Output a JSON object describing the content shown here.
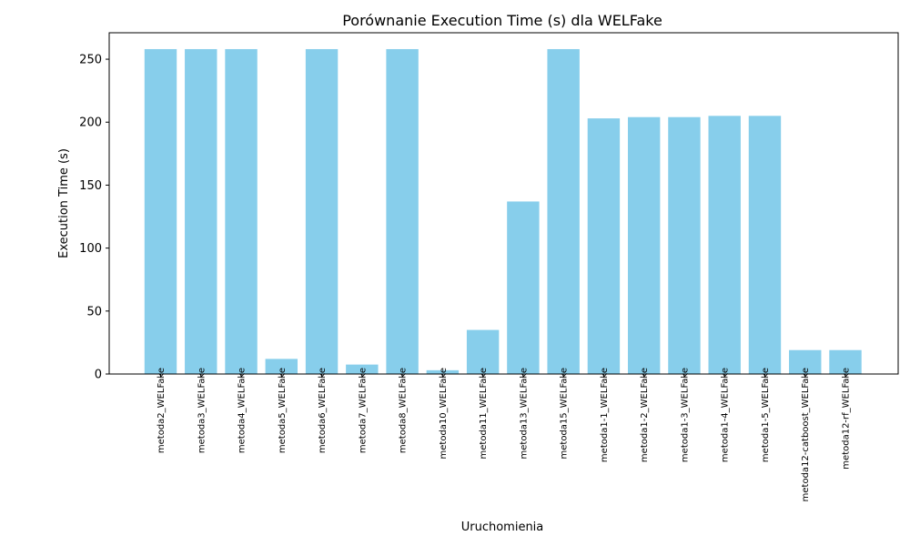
{
  "chart_data": {
    "type": "bar",
    "title": "Porównanie Execution Time (s) dla WELFake",
    "xlabel": "Uruchomienia",
    "ylabel": "Execution Time (s)",
    "ylim": [
      0,
      271
    ],
    "yticks": [
      0,
      50,
      100,
      150,
      200,
      250
    ],
    "bar_color": "#87ceeb",
    "categories": [
      "metoda2_WELFake",
      "metoda3_WELFake",
      "metoda4_WELFake",
      "metoda5_WELFake",
      "metoda6_WELFake",
      "metoda7_WELFake",
      "metoda8_WELFake",
      "metoda10_WELFake",
      "metoda11_WELFake",
      "metoda13_WELFake",
      "metoda15_WELFake",
      "metoda1-1_WELFake",
      "metoda1-2_WELFake",
      "metoda1-3_WELFake",
      "metoda1-4_WELFake",
      "metoda1-5_WELFake",
      "metoda12-catboost_WELFake",
      "metoda12-rf_WELFake"
    ],
    "values": [
      258,
      258,
      258,
      12,
      258,
      7.5,
      258,
      3,
      35,
      137,
      258,
      203,
      204,
      204,
      205,
      205,
      19,
      19
    ]
  }
}
